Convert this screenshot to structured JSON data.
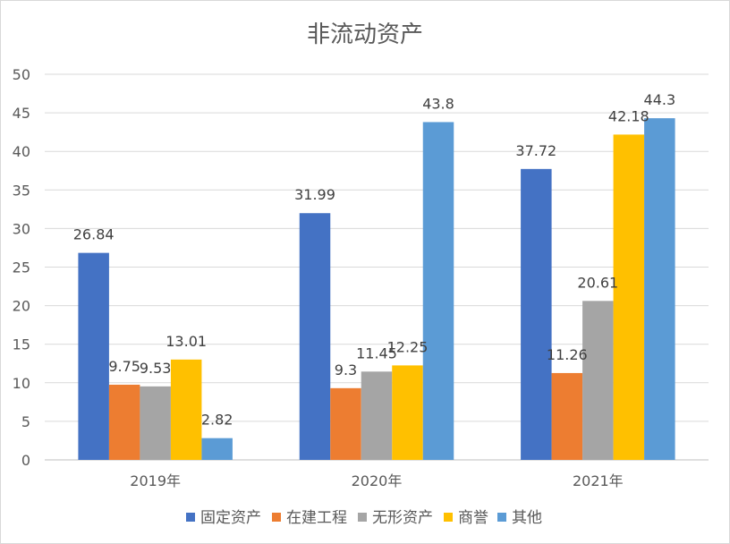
{
  "chart_data": {
    "type": "bar",
    "title": "非流动资产",
    "categories": [
      "2019年",
      "2020年",
      "2021年"
    ],
    "series": [
      {
        "name": "固定资产",
        "color": "#4472C4",
        "values": [
          26.84,
          31.99,
          37.72
        ]
      },
      {
        "name": "在建工程",
        "color": "#ED7D31",
        "values": [
          9.75,
          9.3,
          11.26
        ]
      },
      {
        "name": "无形资产",
        "color": "#A5A5A5",
        "values": [
          9.53,
          11.45,
          20.61
        ]
      },
      {
        "name": "商誉",
        "color": "#FFC000",
        "values": [
          13.01,
          12.25,
          42.18
        ]
      },
      {
        "name": "其他",
        "color": "#5B9BD5",
        "values": [
          2.82,
          43.8,
          44.3
        ]
      }
    ],
    "ylim": [
      0,
      50
    ],
    "yticks": [
      0,
      5,
      10,
      15,
      20,
      25,
      30,
      35,
      40,
      45,
      50
    ],
    "grid": true,
    "legend": "bottom",
    "xlabel": "",
    "ylabel": ""
  }
}
